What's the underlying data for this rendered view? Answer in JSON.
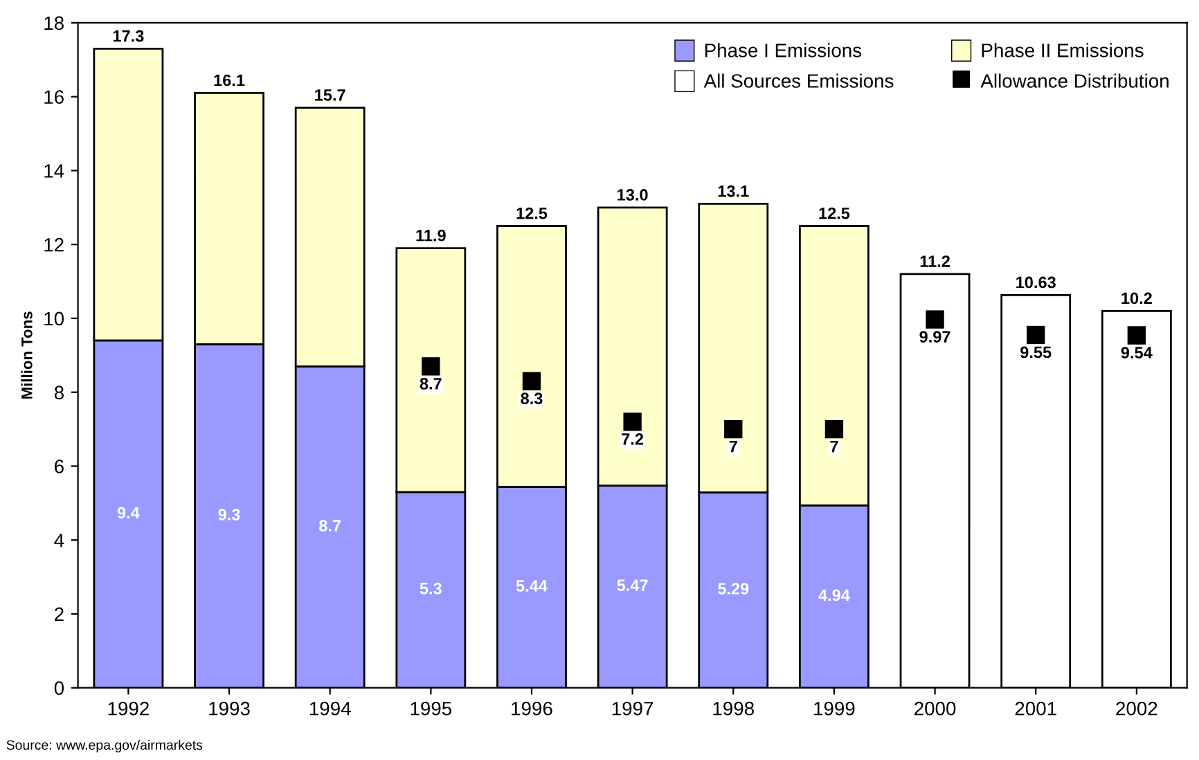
{
  "chart_data": {
    "type": "bar",
    "stacked": true,
    "ylabel": "Million Tons",
    "categories": [
      "1992",
      "1993",
      "1994",
      "1995",
      "1996",
      "1997",
      "1998",
      "1999",
      "2000",
      "2001",
      "2002"
    ],
    "series": [
      {
        "name": "Phase I Emissions",
        "color": "#9999ff",
        "values": [
          9.4,
          9.3,
          8.7,
          5.3,
          5.44,
          5.47,
          5.29,
          4.94,
          null,
          null,
          null
        ],
        "value_labels": [
          "9.4",
          "9.3",
          "8.7",
          "5.3",
          "5.44",
          "5.47",
          "5.29",
          "4.94",
          null,
          null,
          null
        ]
      },
      {
        "name": "Phase II Emissions",
        "color": "#ffffcc",
        "values": [
          7.9,
          6.8,
          7.0,
          6.6,
          7.06,
          7.53,
          7.81,
          7.56,
          null,
          null,
          null
        ]
      },
      {
        "name": "All Sources Emissions",
        "color": "#ffffff",
        "values": [
          null,
          null,
          null,
          null,
          null,
          null,
          null,
          null,
          11.2,
          10.63,
          10.2
        ]
      },
      {
        "name": "Allowance Distribution",
        "type": "scatter",
        "marker": "square",
        "color": "#000000",
        "values": [
          null,
          null,
          null,
          8.7,
          8.3,
          7.2,
          7,
          7,
          9.97,
          9.55,
          9.54
        ],
        "value_labels": [
          null,
          null,
          null,
          "8.7",
          "8.3",
          "7.2",
          "7",
          "7",
          "9.97",
          "9.55",
          "9.54"
        ]
      }
    ],
    "totals": [
      "17.3",
      "16.1",
      "15.7",
      "11.9",
      "12.5",
      "13.0",
      "13.1",
      "12.5",
      "11.2",
      "10.63",
      "10.2"
    ],
    "ylim": [
      0,
      18
    ],
    "yticks": [
      0,
      2,
      4,
      6,
      8,
      10,
      12,
      14,
      16,
      18
    ],
    "grid": false,
    "legend": "top right",
    "annotations": [
      "Source: www.epa.gov/airmarkets"
    ]
  }
}
